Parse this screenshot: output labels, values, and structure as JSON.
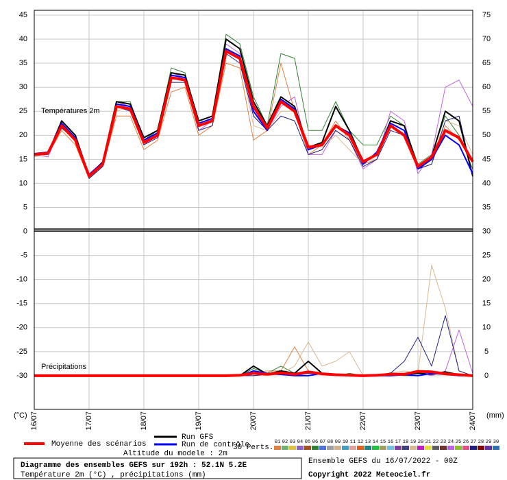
{
  "chart_data": {
    "type": "line",
    "title": "Diagramme des ensembles GEFS sur 192h : 52.1N 5.2E",
    "subtitle": "Température 2m (°C) , précipitations (mm)",
    "run_info": "Ensemble GEFS du 16/07/2022 - 00Z",
    "copyright": "Copyright 2022 Meteociel.fr",
    "altitude": "Altitude du modele : 2m",
    "y_label": "(°C)",
    "y2_label": "(mm)",
    "annotations": [
      "Températures 2m",
      "Précipitations"
    ],
    "categories": [
      "16/07",
      null,
      null,
      null,
      "17/07",
      null,
      null,
      null,
      "18/07",
      null,
      null,
      null,
      "19/07",
      null,
      null,
      null,
      "20/07",
      null,
      null,
      null,
      "21/07",
      null,
      null,
      null,
      "22/07",
      null,
      null,
      null,
      "23/07",
      null,
      null,
      null,
      "24/07"
    ],
    "ylim": [
      -37,
      46
    ],
    "yticks": [
      45,
      40,
      35,
      30,
      25,
      20,
      15,
      10,
      5,
      0,
      -5,
      -10,
      -15,
      -20,
      -25,
      -30
    ],
    "y2lim": [
      -7,
      76
    ],
    "y2ticks": [
      75,
      70,
      65,
      60,
      55,
      50,
      45,
      40,
      35,
      30,
      25,
      20,
      15,
      10,
      5,
      0
    ],
    "grid": true,
    "perturbations": {
      "label": "30 Perts.",
      "members": [
        {
          "label": "01",
          "color": "#e08040"
        },
        {
          "label": "02",
          "color": "#70b070"
        },
        {
          "label": "03",
          "color": "#e0c040"
        },
        {
          "label": "04",
          "color": "#9060c0"
        },
        {
          "label": "05",
          "color": "#a05020"
        },
        {
          "label": "06",
          "color": "#308030"
        },
        {
          "label": "07",
          "color": "#5070e0"
        },
        {
          "label": "08",
          "color": "#a0a0a0"
        },
        {
          "label": "09",
          "color": "#d0b090"
        },
        {
          "label": "10",
          "color": "#40a0c0"
        },
        {
          "label": "11",
          "color": "#e0a0a0"
        },
        {
          "label": "12",
          "color": "#e06020"
        },
        {
          "label": "13",
          "color": "#208080"
        },
        {
          "label": "14",
          "color": "#20c040"
        },
        {
          "label": "15",
          "color": "#a0a060"
        },
        {
          "label": "16",
          "color": "#70c0e0"
        },
        {
          "label": "17",
          "color": "#8040a0"
        },
        {
          "label": "18",
          "color": "#404080"
        },
        {
          "label": "19",
          "color": "#d8b890"
        },
        {
          "label": "20",
          "color": "#c020c0"
        },
        {
          "label": "21",
          "color": "#e0e040"
        },
        {
          "label": "22",
          "color": "#606060"
        },
        {
          "label": "23",
          "color": "#703030"
        },
        {
          "label": "24",
          "color": "#c060e0"
        },
        {
          "label": "25",
          "color": "#90c030"
        },
        {
          "label": "26",
          "color": "#e05080"
        },
        {
          "label": "27",
          "color": "#202080"
        },
        {
          "label": "28",
          "color": "#800000"
        },
        {
          "label": "29",
          "color": "#6030a0"
        },
        {
          "label": "30",
          "color": "#3070b0"
        }
      ]
    },
    "series": [
      {
        "name": "01",
        "color": "#e08040",
        "values": [
          16,
          16,
          21,
          18,
          11,
          13.5,
          24,
          24,
          17,
          19,
          29,
          30,
          20,
          22,
          35,
          34,
          19,
          21,
          35,
          25,
          16,
          18,
          23,
          19,
          14,
          15,
          22,
          20,
          13,
          14,
          22,
          19,
          15
        ],
        "precip": [
          0,
          0,
          0,
          0,
          0,
          0,
          0,
          0,
          0,
          0,
          0,
          0,
          0,
          0,
          0,
          0,
          0.5,
          1,
          1,
          6,
          1,
          0.3,
          0.2,
          0.2,
          0,
          0.3,
          0.2,
          0,
          1,
          0.5,
          0.3,
          0,
          0
        ]
      },
      {
        "name": "06",
        "color": "#308030",
        "values": [
          16,
          16.5,
          23,
          20,
          11,
          14,
          27,
          27,
          19,
          21,
          34,
          33,
          23,
          24,
          41,
          39,
          28,
          22,
          37,
          36,
          21,
          21,
          27,
          21,
          18,
          18,
          24,
          22,
          14,
          16,
          24,
          20,
          13
        ],
        "precip": [
          0,
          0,
          0,
          0,
          0,
          0,
          0,
          0,
          0,
          0,
          0,
          0,
          0,
          0,
          0,
          0,
          1.5,
          0.5,
          2,
          0.5,
          1,
          0.3,
          0,
          0.5,
          0,
          0,
          0.3,
          0,
          0,
          0.4,
          0.2,
          0,
          0
        ]
      },
      {
        "name": "24",
        "color": "#c060e0",
        "values": [
          16,
          15.5,
          22,
          19,
          12,
          14.5,
          27,
          26,
          18,
          20,
          33,
          32,
          21,
          23,
          39,
          37,
          24,
          21,
          26,
          28,
          16,
          16,
          21,
          19,
          13,
          15,
          25,
          23,
          12,
          16,
          30,
          31.5,
          26
        ],
        "precip": [
          0,
          0,
          0,
          0,
          0,
          0,
          0,
          0,
          0,
          0,
          0,
          0,
          0,
          0,
          0,
          0,
          0,
          0.3,
          0.5,
          0.2,
          0.5,
          0.2,
          0.3,
          0,
          0,
          0,
          0.5,
          0.5,
          0.8,
          0,
          1,
          9.5,
          0.5
        ]
      },
      {
        "name": "19",
        "color": "#d8b890",
        "values": [
          15.5,
          16,
          22.5,
          19.5,
          11,
          14,
          25,
          26,
          18.5,
          20,
          32,
          32,
          23,
          24,
          38,
          36,
          22,
          21,
          25,
          25,
          18,
          17.5,
          20,
          17,
          14,
          16,
          22,
          22,
          13,
          15,
          23,
          22,
          16
        ],
        "precip": [
          0,
          0,
          0,
          0,
          0,
          0,
          0,
          0,
          0,
          0,
          0,
          0,
          0,
          0,
          0,
          0,
          0.5,
          1,
          0.5,
          2,
          7,
          2,
          3,
          5,
          0,
          0,
          0.5,
          1,
          0.5,
          23,
          14,
          1,
          0
        ]
      },
      {
        "name": "27",
        "color": "#202080",
        "values": [
          16,
          16,
          21.5,
          19,
          11,
          13.5,
          26,
          25,
          18,
          19.5,
          31,
          31,
          21,
          22,
          37,
          35,
          24,
          21,
          24,
          23,
          16,
          17,
          21,
          19,
          13.5,
          15,
          21,
          20,
          13,
          14,
          23,
          24,
          11.5
        ],
        "precip": [
          0,
          0,
          0,
          0,
          0,
          0,
          0,
          0,
          0,
          0,
          0,
          0,
          0,
          0,
          0,
          0,
          0,
          0.3,
          0.2,
          0,
          0.5,
          0.3,
          0,
          0,
          0,
          0,
          0.5,
          3,
          8,
          2,
          12.5,
          1,
          0
        ]
      },
      {
        "name": "Run GFS",
        "color": "#000000",
        "values": [
          16,
          16.2,
          23,
          20,
          11.5,
          14.5,
          27,
          26.5,
          19.5,
          21,
          33,
          32.5,
          23,
          24,
          40,
          38,
          27,
          22,
          28,
          26,
          17.5,
          18.5,
          26,
          21,
          14.5,
          16,
          23,
          22,
          13.5,
          15.5,
          25,
          23,
          11.5
        ],
        "precip": [
          0,
          0,
          0,
          0,
          0,
          0,
          0,
          0,
          0,
          0,
          0,
          0,
          0,
          0,
          0,
          0,
          2,
          0.3,
          1,
          0.5,
          3,
          0.5,
          0.3,
          0,
          0,
          0,
          0.5,
          0.2,
          0.5,
          0.3,
          0.8,
          0.2,
          0
        ]
      },
      {
        "name": "Run de contrôle",
        "color": "#0000ff",
        "values": [
          16.2,
          16.5,
          22.5,
          19.5,
          11.8,
          14.3,
          26.5,
          26,
          19,
          20.5,
          32.5,
          32,
          22.5,
          23.5,
          38,
          36.5,
          25,
          21,
          27.5,
          25.5,
          17,
          18,
          22,
          20.5,
          14,
          16.5,
          22.5,
          21,
          13,
          15,
          20,
          18,
          12
        ],
        "precip": [
          0,
          0,
          0,
          0,
          0,
          0,
          0,
          0,
          0,
          0,
          0,
          0,
          0,
          0,
          0,
          0,
          1,
          0.5,
          0.3,
          0,
          0,
          0.5,
          0.2,
          0,
          0,
          0,
          0,
          0.2,
          0,
          0.5,
          0.3,
          0,
          0
        ]
      },
      {
        "name": "Moyenne des scénarios",
        "color": "#ff0000",
        "values": [
          16,
          16.3,
          22,
          19,
          11.5,
          14,
          26,
          25.5,
          18.5,
          20,
          32,
          31.5,
          22,
          23,
          37.5,
          36,
          26,
          21.5,
          27,
          25,
          17.5,
          18,
          22,
          20,
          14.5,
          16,
          22,
          20,
          13.5,
          15.5,
          21,
          19.5,
          14.5
        ],
        "precip": [
          0,
          0,
          0,
          0,
          0,
          0,
          0,
          0,
          0,
          0,
          0,
          0,
          0,
          0,
          0,
          0.1,
          0.5,
          0.3,
          0.6,
          0.3,
          0.8,
          0.4,
          0.2,
          0.1,
          0,
          0.1,
          0.3,
          0.3,
          0.9,
          0.8,
          0.4,
          0.2,
          0
        ]
      }
    ]
  }
}
